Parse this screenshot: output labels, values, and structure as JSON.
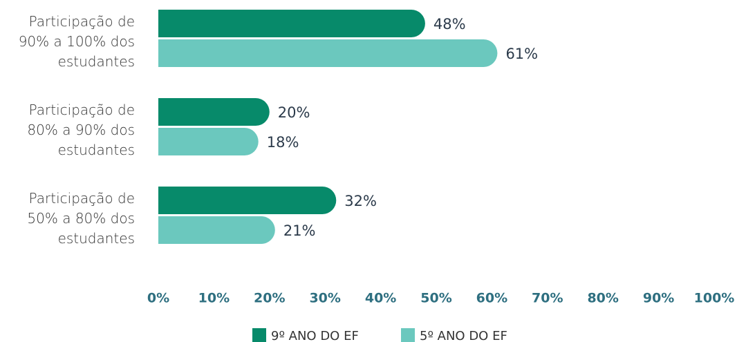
{
  "chart_data": {
    "type": "barh",
    "categories": [
      "Participação de 90% a 100% dos estudantes",
      "Participação de 80% a 90% dos estudantes",
      "Participação de 50% a 80% dos estudantes"
    ],
    "series": [
      {
        "name": "9º ANO DO EF",
        "color": "#078a6a",
        "values": [
          48,
          20,
          32
        ],
        "value_labels": [
          "48%",
          "20%",
          "32%"
        ]
      },
      {
        "name": "5º ANO DO EF",
        "color": "#6bc8be",
        "values": [
          61,
          18,
          21
        ],
        "value_labels": [
          "61%",
          "18%",
          "21%"
        ]
      }
    ],
    "xlim": [
      0,
      100
    ],
    "xticks": [
      {
        "value": 0,
        "label": "0%"
      },
      {
        "value": 10,
        "label": "10%"
      },
      {
        "value": 20,
        "label": "20%"
      },
      {
        "value": 30,
        "label": "30%"
      },
      {
        "value": 40,
        "label": "40%"
      },
      {
        "value": 50,
        "label": "50%"
      },
      {
        "value": 60,
        "label": "60%"
      },
      {
        "value": 70,
        "label": "70%"
      },
      {
        "value": 80,
        "label": "80%"
      },
      {
        "value": 90,
        "label": "90%"
      },
      {
        "value": 100,
        "label": "100%"
      }
    ],
    "grid": false,
    "legend": "bottom"
  }
}
